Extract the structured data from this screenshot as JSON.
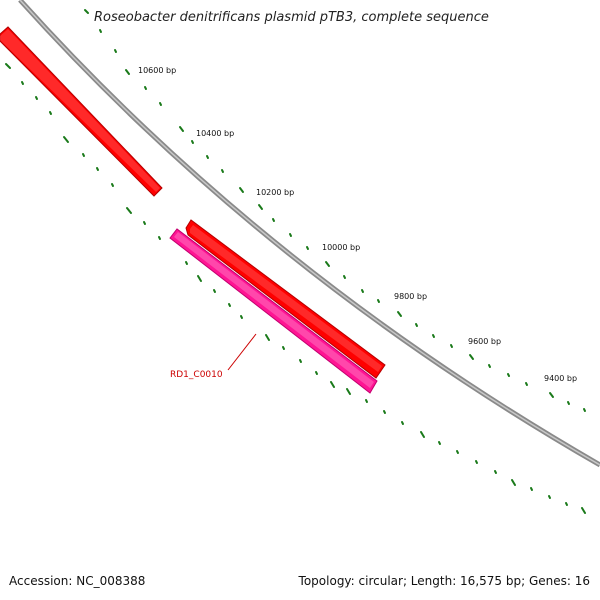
{
  "header": {
    "title": "Roseobacter denitrificans plasmid pTB3, complete sequence"
  },
  "footer": {
    "accession": "Accession: NC_008388",
    "summary": "Topology: circular; Length: 16,575 bp; Genes: 16"
  },
  "tick_labels": [
    {
      "label": "10600 bp"
    },
    {
      "label": "10400 bp"
    },
    {
      "label": "10200 bp"
    },
    {
      "label": "10000 bp"
    },
    {
      "label": "9800 bp"
    },
    {
      "label": "9600 bp"
    },
    {
      "label": "9400 bp"
    }
  ],
  "genes": [
    {
      "label": "RD1_C0010",
      "color": "#ff1493",
      "track": "inner"
    }
  ],
  "colors": {
    "backbone": "#808080",
    "forward_gene": "#ff0000",
    "reverse_gene": "#ff1493",
    "ticks": "#1a7a1a",
    "gene_label": "#cc0000"
  }
}
